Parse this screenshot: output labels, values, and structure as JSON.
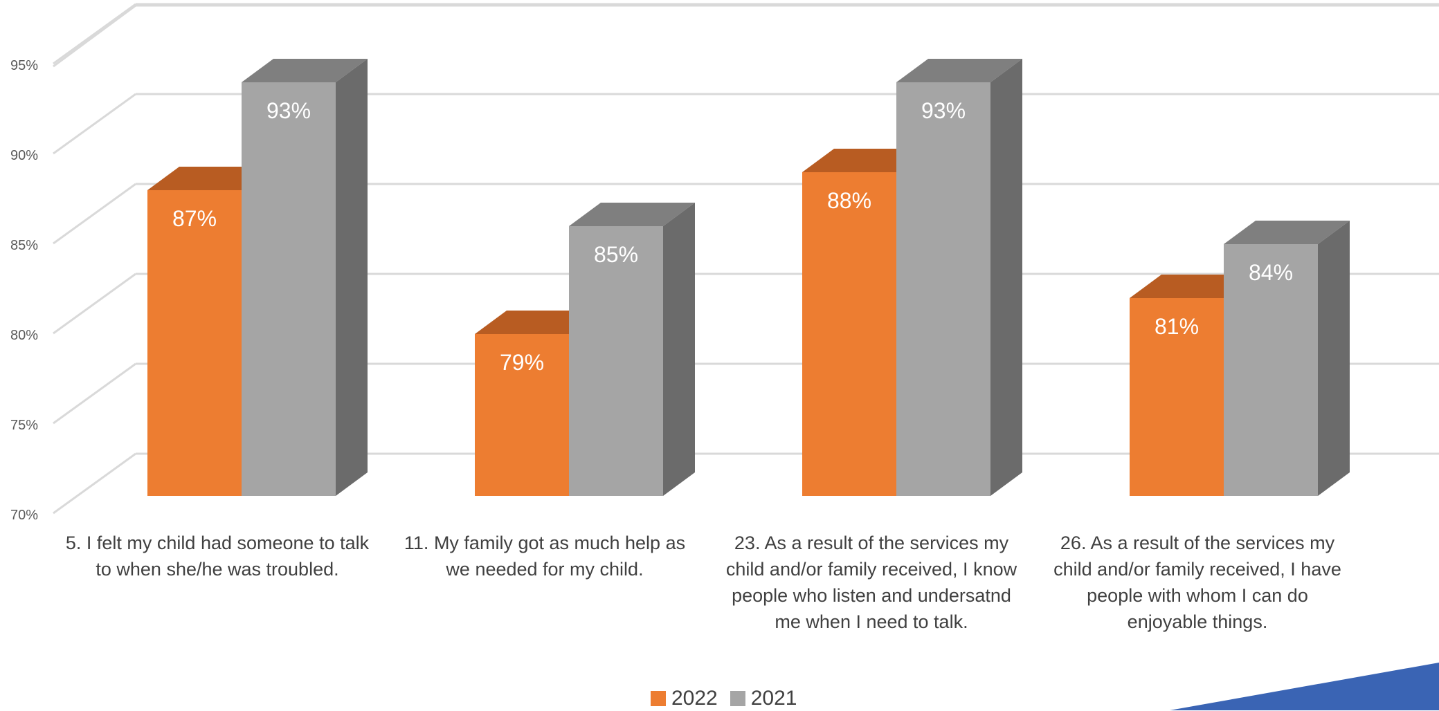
{
  "chart_data": {
    "type": "bar",
    "title": "",
    "xlabel": "",
    "ylabel": "",
    "ylim": [
      70,
      95
    ],
    "yticks": [
      "70%",
      "75%",
      "80%",
      "85%",
      "90%",
      "95%"
    ],
    "categories": [
      "5. I felt my child had someone to talk to when she/he was troubled.",
      "11. My family got as much help as we needed for my child.",
      "23. As a result of the services my child and/or family received, I know people who listen and undersatnd me when I need to talk.",
      "26. As a result of the services my child and/or family received, I have people with whom I can do enjoyable things."
    ],
    "series": [
      {
        "name": "2022",
        "values": [
          87,
          79,
          88,
          81
        ],
        "labels": [
          "87%",
          "79%",
          "88%",
          "81%"
        ],
        "color": "#ED7D31"
      },
      {
        "name": "2021",
        "values": [
          93,
          85,
          93,
          84
        ],
        "labels": [
          "93%",
          "85%",
          "93%",
          "84%"
        ],
        "color": "#A5A5A5"
      }
    ],
    "grid": true,
    "legend": "bottom-center",
    "style": "3d-clustered-column"
  },
  "decor": {
    "corner_accent_color": "#3A64B4"
  }
}
